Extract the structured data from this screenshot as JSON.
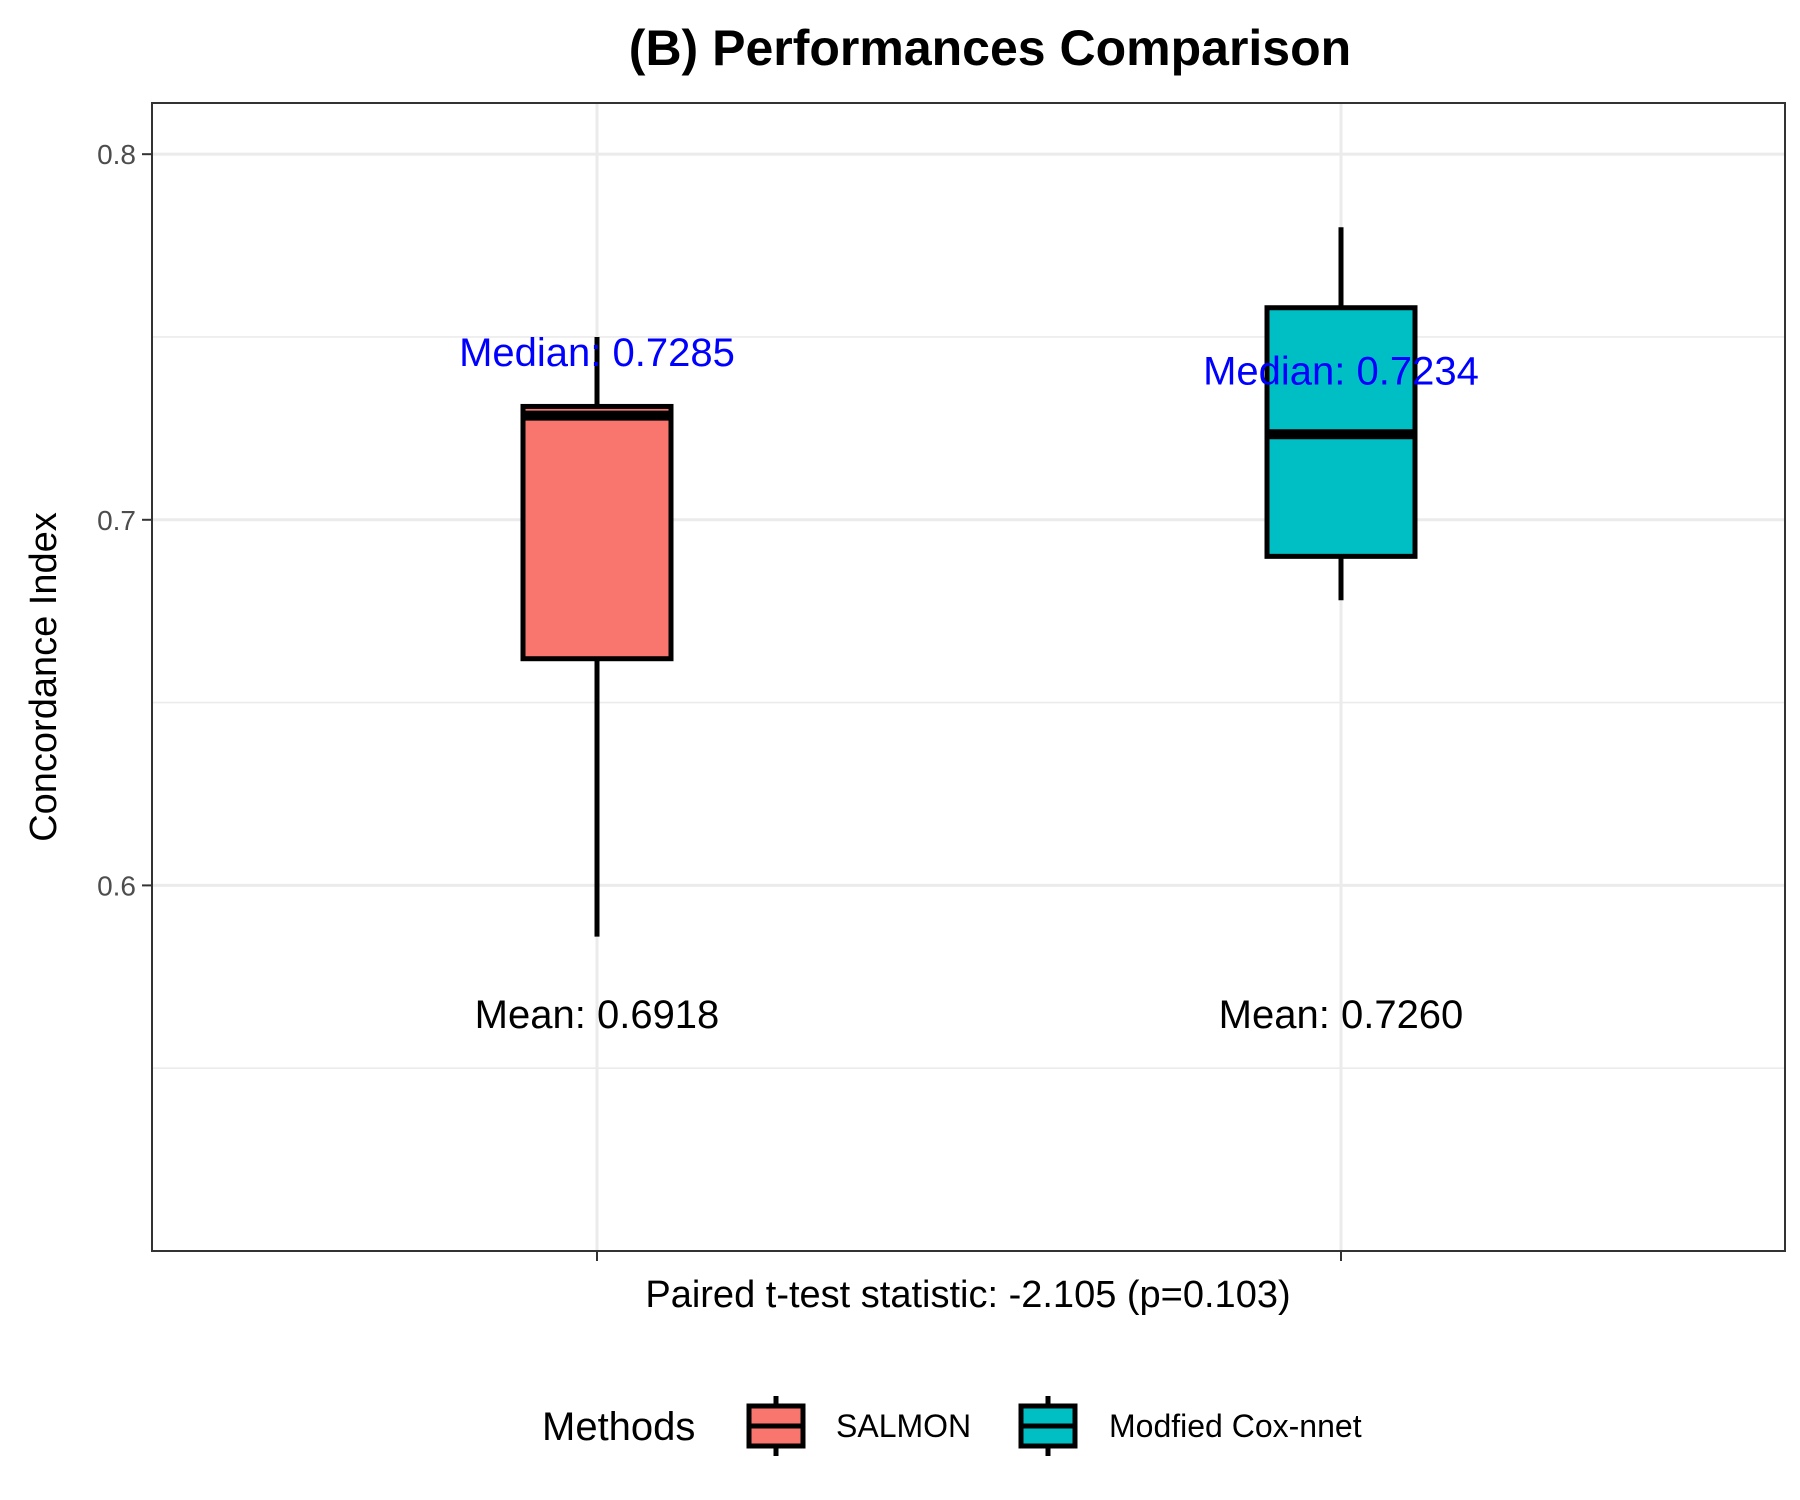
{
  "chart_data": {
    "type": "boxplot",
    "title": "(B) Performances Comparison",
    "ylabel": "Concordance Index",
    "xlabel": "Paired t-test statistic: -2.105 (p=0.103)",
    "ylim": [
      0.5,
      0.814
    ],
    "yticks": [
      0.6,
      0.7,
      0.8
    ],
    "ytick_labels": [
      "0.6",
      "0.7",
      "0.8"
    ],
    "grid": true,
    "legend": {
      "title": "Methods",
      "position": "bottom"
    },
    "series": [
      {
        "name": "SALMON",
        "color": "#F8766D",
        "whisker_low": 0.586,
        "q1": 0.662,
        "median": 0.7285,
        "q3": 0.731,
        "whisker_high": 0.75,
        "median_label": "Median: 0.7285",
        "median_label_y": 0.742,
        "mean_label": "Mean: 0.6918",
        "mean_label_y": 0.561
      },
      {
        "name": "Modfied Cox-nnet",
        "color": "#00BFC4",
        "whisker_low": 0.678,
        "q1": 0.69,
        "median": 0.7234,
        "q3": 0.758,
        "whisker_high": 0.78,
        "median_label": "Median: 0.7234",
        "median_label_y": 0.737,
        "mean_label": "Mean: 0.7260",
        "mean_label_y": 0.561
      }
    ],
    "median_label_color": "#0000FF"
  }
}
